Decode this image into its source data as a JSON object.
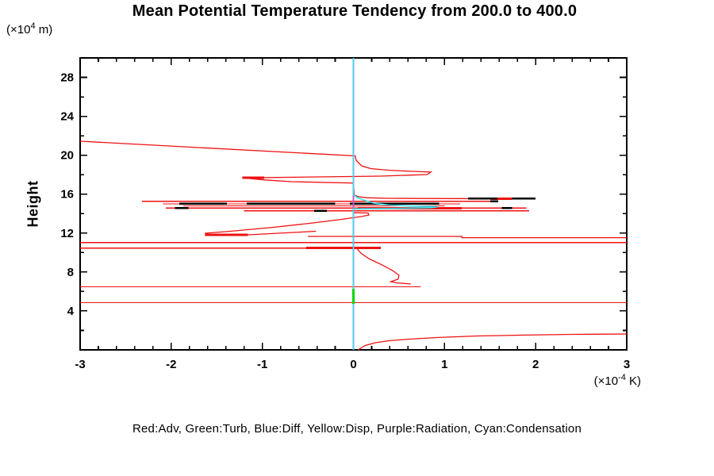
{
  "chart_data": {
    "type": "line",
    "title": "Mean Potential Temperature Tendency from 200.0 to 400.0",
    "ylabel": "Height",
    "y_axis_unit": {
      "prefix": "(×10",
      "sup": "4",
      "suffix": " m)"
    },
    "x_axis_unit": {
      "prefix": "(×10",
      "sup": "-4",
      "suffix": " K)"
    },
    "legend_caption": "Red:Adv, Green:Turb, Blue:Diff, Yellow:Disp, Purple:Radiation, Cyan:Condensation",
    "xlim": [
      -3,
      3
    ],
    "ylim": [
      0,
      30
    ],
    "x_ticks": [
      "-3",
      "-2",
      "-1",
      "0",
      "1",
      "2",
      "3"
    ],
    "x_tick_values": [
      -3,
      -2,
      -1,
      0,
      1,
      2,
      3
    ],
    "x_minor_step": 0.2,
    "y_ticks": [
      "4",
      "8",
      "12",
      "16",
      "20",
      "24",
      "28"
    ],
    "y_tick_values": [
      4,
      8,
      12,
      16,
      20,
      24,
      28
    ],
    "y_minor_step": 2,
    "grid": false,
    "frame_color": "#000000",
    "series": [
      {
        "name": "Adv",
        "color": "#ee1111",
        "width": 1.3,
        "segments": [
          [
            [
              -3,
              21.44
            ],
            [
              0.02,
              19.93
            ],
            [
              0.03,
              19.48
            ],
            [
              0.09,
              18.91
            ],
            [
              0.19,
              18.63
            ],
            [
              0.39,
              18.46
            ],
            [
              0.65,
              18.34
            ],
            [
              0.85,
              18.28
            ],
            [
              0.81,
              18.02
            ],
            [
              0.3,
              17.85
            ],
            [
              -0.39,
              17.77
            ],
            [
              -1.22,
              17.67
            ],
            [
              -0.97,
              17.46
            ],
            [
              -0.68,
              17.28
            ],
            [
              0,
              17.14
            ],
            [
              0.01,
              15.9
            ],
            [
              0.06,
              15.73
            ],
            [
              0.15,
              15.63
            ],
            [
              0.39,
              15.57
            ],
            [
              1.0,
              15.55
            ],
            [
              1.93,
              15.53
            ]
          ],
          [
            [
              -2.32,
              15.27
            ],
            [
              1.59,
              15.27
            ]
          ],
          [
            [
              -2.09,
              15.0
            ],
            [
              1.17,
              15.0
            ]
          ],
          [
            [
              -1.87,
              14.8
            ],
            [
              1.0,
              14.8
            ]
          ],
          [
            [
              -2.06,
              14.57
            ],
            [
              1.9,
              14.57
            ]
          ],
          [
            [
              -1.2,
              14.28
            ],
            [
              1.93,
              14.28
            ]
          ],
          [
            [
              0,
              14.09
            ],
            [
              0.16,
              14.06
            ],
            [
              0.17,
              13.86
            ],
            [
              0.09,
              13.7
            ],
            [
              -0.13,
              13.41
            ],
            [
              -0.48,
              13.0
            ],
            [
              -0.91,
              12.56
            ],
            [
              -1.35,
              12.19
            ],
            [
              -1.63,
              11.98
            ]
          ],
          [
            [
              -1.63,
              11.82
            ],
            [
              -1.16,
              11.82
            ],
            [
              -0.41,
              12.19
            ]
          ],
          [
            [
              -0.5,
              11.66
            ],
            [
              1.19,
              11.66
            ],
            [
              1.19,
              11.53
            ],
            [
              3,
              11.53
            ]
          ],
          [
            [
              -3,
              11.04
            ],
            [
              3,
              11.04
            ]
          ],
          [
            [
              -3,
              10.47
            ],
            [
              0.3,
              10.47
            ]
          ],
          [
            [
              0.03,
              10.52
            ],
            [
              0.08,
              9.95
            ],
            [
              0.17,
              9.37
            ],
            [
              0.3,
              8.8
            ],
            [
              0.43,
              8.15
            ],
            [
              0.5,
              7.66
            ],
            [
              0.49,
              7.26
            ],
            [
              0.41,
              7.01
            ],
            [
              0.47,
              6.89
            ],
            [
              0.58,
              6.81
            ],
            [
              0.63,
              6.77
            ]
          ],
          [
            [
              -3,
              6.48
            ],
            [
              0.74,
              6.48
            ]
          ],
          [
            [
              -3,
              4.85
            ],
            [
              3,
              4.85
            ]
          ],
          [
            [
              0.05,
              0
            ],
            [
              0.13,
              0.45
            ],
            [
              0.24,
              0.73
            ],
            [
              0.39,
              0.94
            ],
            [
              0.61,
              1.1
            ],
            [
              0.91,
              1.26
            ],
            [
              1.35,
              1.43
            ],
            [
              1.87,
              1.52
            ],
            [
              2.39,
              1.59
            ],
            [
              3,
              1.63
            ]
          ]
        ],
        "thick_segments": [
          [
            [
              -1.22,
              17.67
            ],
            [
              -0.98,
              17.67
            ]
          ],
          [
            [
              1.5,
              15.55
            ],
            [
              1.74,
              15.55
            ]
          ],
          [
            [
              0.05,
              14.57
            ],
            [
              1.19,
              14.57
            ]
          ],
          [
            [
              -1.63,
              11.82
            ],
            [
              -1.16,
              11.82
            ]
          ],
          [
            [
              -0.52,
              10.47
            ],
            [
              0.3,
              10.47
            ]
          ]
        ]
      },
      {
        "name": "Diff",
        "color": "#2222ee",
        "width": 1.3,
        "segments": [
          [
            [
              0,
              30
            ],
            [
              0,
              0
            ]
          ]
        ]
      },
      {
        "name": "Disp",
        "color": "#eeee00",
        "width": 1.3,
        "segments": [
          [
            [
              0,
              30
            ],
            [
              0,
              0
            ]
          ]
        ]
      },
      {
        "name": "Radiation",
        "color": "#cc55cc",
        "width": 1.6,
        "segments": [
          [
            [
              0,
              30
            ],
            [
              0,
              0
            ]
          ]
        ]
      },
      {
        "name": "Condensation",
        "color": "#35e3ef",
        "width": 1.6,
        "segments": [
          [
            [
              0,
              30
            ],
            [
              0,
              15.92
            ],
            [
              0.04,
              15.66
            ],
            [
              0.11,
              15.41
            ],
            [
              0.22,
              15.08
            ],
            [
              0.39,
              14.88
            ],
            [
              0.65,
              14.77
            ],
            [
              0.93,
              14.71
            ],
            [
              0.85,
              14.61
            ],
            [
              0.45,
              14.53
            ],
            [
              0,
              14.49
            ],
            [
              0,
              0
            ]
          ]
        ]
      },
      {
        "name": "Turb",
        "color": "#00d800",
        "width": 3,
        "segments": [
          [
            [
              0,
              6.28
            ],
            [
              0,
              4.73
            ]
          ]
        ]
      }
    ],
    "overlap_marks": {
      "color": "#000000",
      "width": 2.4,
      "segments": [
        [
          [
            -1.91,
            15.03
          ],
          [
            -1.39,
            15.03
          ]
        ],
        [
          [
            -1.17,
            15.03
          ],
          [
            -0.2,
            15.03
          ]
        ],
        [
          [
            -0.04,
            15.03
          ],
          [
            0.94,
            15.03
          ]
        ],
        [
          [
            1.26,
            15.54
          ],
          [
            1.58,
            15.54
          ]
        ],
        [
          [
            1.74,
            15.54
          ],
          [
            2.0,
            15.54
          ]
        ],
        [
          [
            1.5,
            15.27
          ],
          [
            1.59,
            15.27
          ]
        ],
        [
          [
            -1.96,
            14.57
          ],
          [
            -1.81,
            14.57
          ]
        ],
        [
          [
            1.63,
            14.57
          ],
          [
            1.74,
            14.57
          ]
        ],
        [
          [
            -0.43,
            14.28
          ],
          [
            -0.29,
            14.28
          ]
        ]
      ]
    }
  }
}
